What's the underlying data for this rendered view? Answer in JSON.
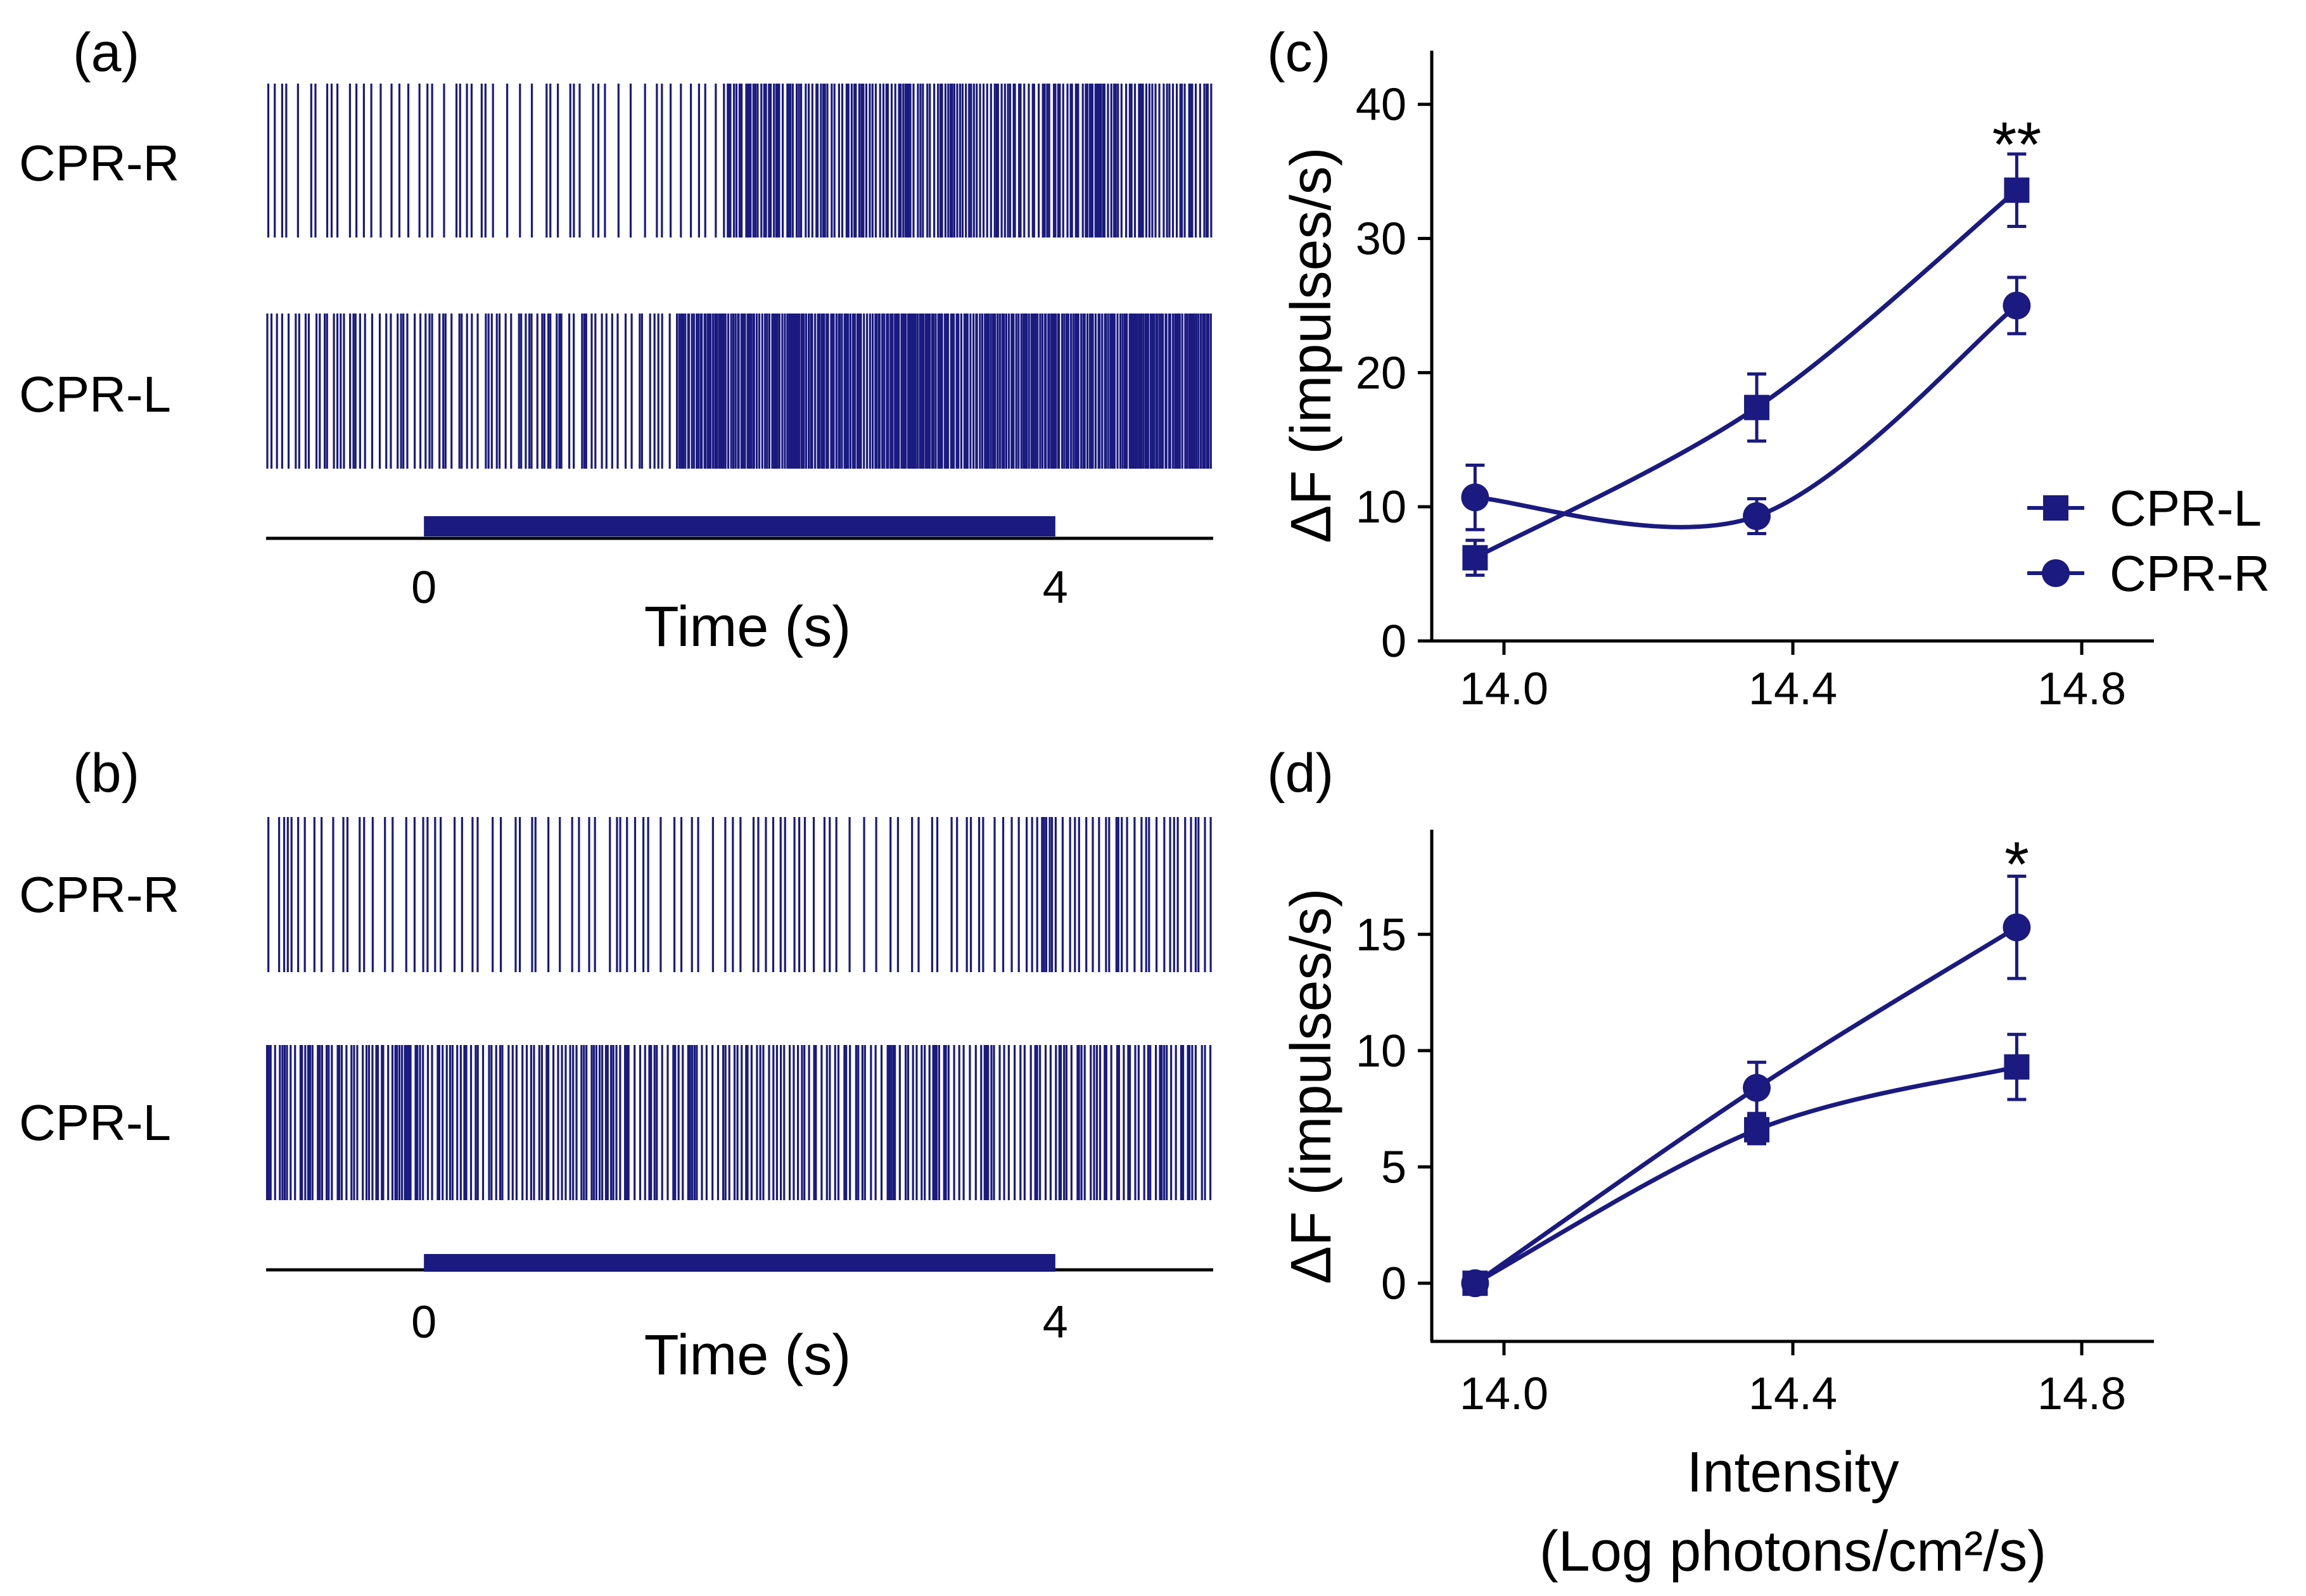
{
  "colors": {
    "series": "#1a1a80",
    "axis": "#000000",
    "background": "#ffffff"
  },
  "raster": [
    {
      "panel_label": "(a)",
      "rows": [
        {
          "label": "CPR-R",
          "phases": [
            {
              "from": -1,
              "to": 1.9,
              "isi": 0.058
            },
            {
              "from": 1.9,
              "to": 5,
              "isi": 0.018
            }
          ],
          "seed": 11
        },
        {
          "label": "CPR-L",
          "phases": [
            {
              "from": -1,
              "to": 1.6,
              "isi": 0.032
            },
            {
              "from": 1.6,
              "to": 5,
              "isi": 0.012
            }
          ],
          "seed": 23
        }
      ],
      "stimulus": {
        "start": 0,
        "end": 4
      },
      "time_range": [
        -1,
        5
      ],
      "ticks": [
        "0",
        "4"
      ],
      "xlabel": "Time (s)"
    },
    {
      "panel_label": "(b)",
      "rows": [
        {
          "label": "CPR-R",
          "phases": [
            {
              "from": -1,
              "to": 3.8,
              "isi": 0.058
            },
            {
              "from": 3.8,
              "to": 5,
              "isi": 0.03
            }
          ],
          "seed": 37
        },
        {
          "label": "CPR-L",
          "phases": [
            {
              "from": -1,
              "to": 5,
              "isi": 0.024
            }
          ],
          "seed": 53
        }
      ],
      "stimulus": {
        "start": 0,
        "end": 4
      },
      "time_range": [
        -1,
        5
      ],
      "ticks": [
        "0",
        "4"
      ],
      "xlabel": "Time (s)"
    }
  ],
  "chart_data": [
    {
      "type": "line",
      "panel_label": "(c)",
      "x": [
        13.96,
        14.35,
        14.71
      ],
      "series": [
        {
          "name": "CPR-L",
          "marker": "square",
          "values": [
            6.2,
            17.4,
            33.6
          ],
          "errors": [
            1.3,
            2.5,
            2.7
          ]
        },
        {
          "name": "CPR-R",
          "marker": "circle",
          "values": [
            10.7,
            9.3,
            25.0
          ],
          "errors": [
            2.4,
            1.3,
            2.1
          ]
        }
      ],
      "xlim": [
        13.9,
        14.9
      ],
      "ylim": [
        0,
        44
      ],
      "xticks": [
        14.0,
        14.4,
        14.8
      ],
      "yticks": [
        0,
        10,
        20,
        30,
        40
      ],
      "xtick_labels": [
        "14.0",
        "14.4",
        "14.8"
      ],
      "ytick_labels": [
        "0",
        "10",
        "20",
        "30",
        "40"
      ],
      "ylabel": "ΔF (impulses/s)",
      "xlabel": "",
      "significance": {
        "x": 14.71,
        "y": 37.5,
        "text": "**"
      },
      "legend": {
        "position": "right",
        "entries": [
          "CPR-L",
          "CPR-R"
        ]
      }
    },
    {
      "type": "line",
      "panel_label": "(d)",
      "x": [
        13.96,
        14.35,
        14.71
      ],
      "series": [
        {
          "name": "CPR-L",
          "marker": "square",
          "values": [
            0.0,
            6.6,
            9.3
          ],
          "errors": [
            0.2,
            0.6,
            1.4
          ]
        },
        {
          "name": "CPR-R",
          "marker": "circle",
          "values": [
            0.0,
            8.4,
            15.3
          ],
          "errors": [
            0.2,
            1.1,
            2.2
          ]
        }
      ],
      "xlim": [
        13.9,
        14.9
      ],
      "ylim": [
        -2.5,
        19.5
      ],
      "xticks": [
        14.0,
        14.4,
        14.8
      ],
      "yticks": [
        0,
        5,
        10,
        15
      ],
      "xtick_labels": [
        "14.0",
        "14.4",
        "14.8"
      ],
      "ytick_labels": [
        "0",
        "5",
        "10",
        "15"
      ],
      "ylabel": "ΔF (impulses/s)",
      "xlabel_line1": "Intensity",
      "xlabel_line2": "(Log photons/cm²/s)",
      "significance": {
        "x": 14.71,
        "y": 18.3,
        "text": "*"
      }
    }
  ]
}
